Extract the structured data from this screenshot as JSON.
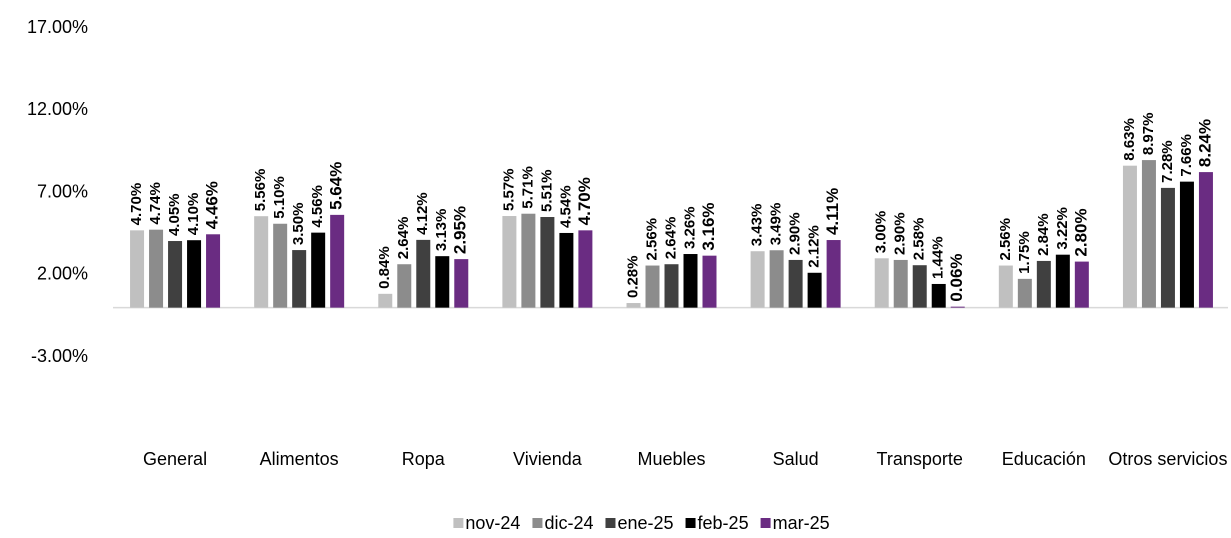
{
  "chart_data": {
    "type": "bar",
    "categories": [
      "General",
      "Alimentos",
      "Ropa",
      "Vivienda",
      "Muebles",
      "Salud",
      "Transporte",
      "Educación",
      "Otros servicios"
    ],
    "series": [
      {
        "name": "nov-24",
        "color": "#c0c0c0",
        "values": [
          4.7,
          5.56,
          0.84,
          5.57,
          0.28,
          3.43,
          3.0,
          2.56,
          8.63
        ],
        "value_labels": [
          "4.70%",
          "5.56%",
          "0.84%",
          "5.57%",
          "0.28%",
          "3.43%",
          "3.00%",
          "2.56%",
          "8.63%"
        ]
      },
      {
        "name": "dic-24",
        "color": "#8c8c8c",
        "values": [
          4.74,
          5.1,
          2.64,
          5.71,
          2.56,
          3.49,
          2.9,
          1.75,
          8.97
        ],
        "value_labels": [
          "4.74%",
          "5.10%",
          "2.64%",
          "5.71%",
          "2.56%",
          "3.49%",
          "2.90%",
          "1.75%",
          "8.97%"
        ]
      },
      {
        "name": "ene-25",
        "color": "#404040",
        "values": [
          4.05,
          3.5,
          4.12,
          5.51,
          2.64,
          2.9,
          2.58,
          2.84,
          7.28
        ],
        "value_labels": [
          "4.05%",
          "3.50%",
          "4.12%",
          "5.51%",
          "2.64%",
          "2.90%",
          "2.58%",
          "2.84%",
          "7.28%"
        ]
      },
      {
        "name": "feb-25",
        "color": "#000000",
        "values": [
          4.1,
          4.56,
          3.13,
          4.54,
          3.26,
          2.12,
          1.44,
          3.22,
          7.66
        ],
        "value_labels": [
          "4.10%",
          "4.56%",
          "3.13%",
          "4.54%",
          "3.26%",
          "2.12%",
          "1.44%",
          "3.22%",
          "7.66%"
        ]
      },
      {
        "name": "mar-25",
        "color": "#6a2c82",
        "values": [
          4.46,
          5.64,
          2.95,
          4.7,
          3.16,
          4.11,
          0.06,
          2.8,
          8.24
        ],
        "value_labels": [
          "4.46%",
          "5.64%",
          "2.95%",
          "4.70%",
          "3.16%",
          "4.11%",
          "0.06%",
          "2.80%",
          "8.24%"
        ]
      }
    ],
    "ylim": [
      -3,
      17
    ],
    "yticks": [
      {
        "value": -3,
        "label": "-3.00%"
      },
      {
        "value": 2,
        "label": "2.00%"
      },
      {
        "value": 7,
        "label": "7.00%"
      },
      {
        "value": 12,
        "label": "12.00%"
      },
      {
        "value": 17,
        "label": "17.00%"
      }
    ],
    "grid": false,
    "legend": "bottom"
  }
}
